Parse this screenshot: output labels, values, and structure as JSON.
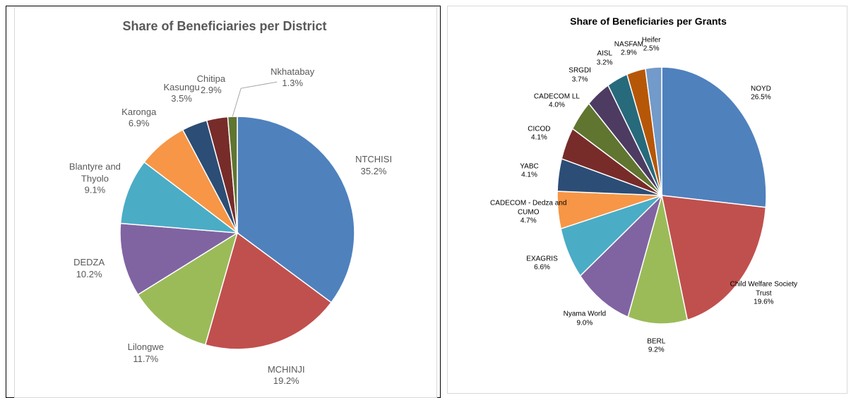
{
  "chart_data": [
    {
      "type": "pie",
      "title": "Share of Beneficiaries per District",
      "categories": [
        "NTCHISI",
        "MCHINJI",
        "Lilongwe",
        "DEDZA",
        "Blantyre and Thyolo",
        "Karonga",
        "Kasungu",
        "Chitipa",
        "Nkhatabay"
      ],
      "values": [
        35.2,
        19.2,
        11.7,
        10.2,
        9.1,
        6.9,
        3.5,
        2.9,
        1.3
      ],
      "value_labels": [
        "35.2%",
        "19.2%",
        "11.7%",
        "10.2%",
        "9.1%",
        "6.9%",
        "3.5%",
        "2.9%",
        "1.3%"
      ],
      "colors": [
        "#4f81bd",
        "#c0504d",
        "#9bbb59",
        "#8064a2",
        "#4bacc6",
        "#f79646",
        "#2c4d75",
        "#772c2a",
        "#5f7530"
      ]
    },
    {
      "type": "pie",
      "title": "Share of Beneficiaries per Grants",
      "categories": [
        "NOYD",
        "Child Welfare Society Trust",
        "BERL",
        "Nyama World",
        "EXAGRIS",
        "CADECOM - Dedza and CUMO",
        "YABC",
        "CICOD",
        "CADECOM LL",
        "SRGDI",
        "AISL",
        "NASFAM",
        "Heifer"
      ],
      "values": [
        26.5,
        19.6,
        9.2,
        9.0,
        6.6,
        4.7,
        4.1,
        4.1,
        4.0,
        3.7,
        3.2,
        2.9,
        2.5
      ],
      "value_labels": [
        "26.5%",
        "19.6%",
        "9.2%",
        "9.0%",
        "6.6%",
        "4.7%",
        "4.1%",
        "4.1%",
        "4.0%",
        "3.7%",
        "3.2%",
        "2.9%",
        "2.5%"
      ],
      "colors": [
        "#4f81bd",
        "#c0504d",
        "#9bbb59",
        "#8064a2",
        "#4bacc6",
        "#f79646",
        "#2c4d75",
        "#772c2a",
        "#5f7530",
        "#4d3b62",
        "#276a7c",
        "#b65708",
        "#729aca"
      ]
    }
  ]
}
